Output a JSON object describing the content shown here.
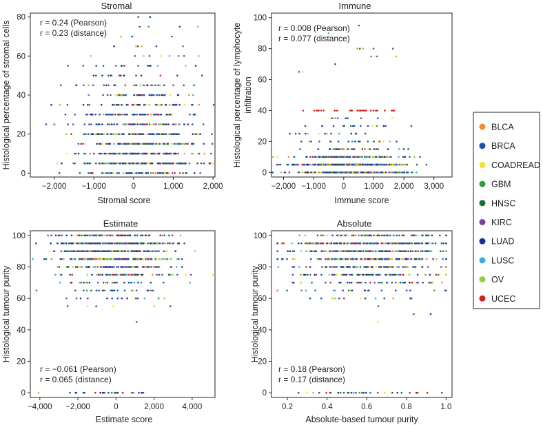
{
  "colors": {
    "BLCA": "#f28c28",
    "BRCA": "#1f4fa8",
    "COADREAD": "#f2e22a",
    "GBM": "#2e9e3f",
    "HNSC": "#1a6b3a",
    "KIRC": "#7a3fa0",
    "LUAD": "#1c2f8a",
    "LUSC": "#3fa9e0",
    "OV": "#9ccc3a",
    "UCEC": "#d42020"
  },
  "legend": {
    "entries": [
      "BLCA",
      "BRCA",
      "COADREAD",
      "GBM",
      "HNSC",
      "KIRC",
      "LUAD",
      "LUSC",
      "OV",
      "UCEC"
    ]
  },
  "chart_data": [
    {
      "type": "scatter",
      "title": "Stromal",
      "xlabel": "Stromal score",
      "ylabel": "Histological percentage of stromal cells",
      "xlim": [
        -2600,
        2050
      ],
      "ylim": [
        -2,
        82
      ],
      "xticks": [
        -2000,
        -1000,
        0,
        1000,
        2000
      ],
      "xtick_labels": [
        "−2,000",
        "−1,000",
        "0",
        "1,000",
        "2,000"
      ],
      "yticks": [
        0,
        20,
        40,
        60,
        80
      ],
      "ytick_labels": [
        "0",
        "20",
        "40",
        "60",
        "80"
      ],
      "annotations": [
        "r = 0.24 (Pearson)",
        "r = 0.23 (distance)"
      ],
      "annotation_position": "top-left",
      "series_note": "Point cloud of ~3,000 tumour samples colored by cancer type; y concentrated at multiples of 5 between 0 and 80",
      "x_center": 200,
      "x_spread": 800,
      "y_pattern": "stromal"
    },
    {
      "type": "scatter",
      "title": "Immune",
      "xlabel": "Immune score",
      "ylabel": "Histological percentage of lymphocyte infiltration",
      "xlim": [
        -2400,
        3600
      ],
      "ylim": [
        -3,
        103
      ],
      "xticks": [
        -2000,
        -1000,
        0,
        1000,
        2000,
        3000
      ],
      "xtick_labels": [
        "−2,000",
        "−1,000",
        "0",
        "1,000",
        "2,000",
        "3,000"
      ],
      "yticks": [
        0,
        20,
        40,
        60,
        80,
        100
      ],
      "ytick_labels": [
        "0",
        "20",
        "40",
        "60",
        "80",
        "100"
      ],
      "annotations": [
        "r = 0.008 (Pearson)",
        "r = 0.077 (distance)"
      ],
      "annotation_position": "top-left",
      "series_note": "Most samples near 0–10% lymphocyte infiltration; a band at 40% mostly UCEC",
      "x_center": 200,
      "x_spread": 900,
      "y_pattern": "immune"
    },
    {
      "type": "scatter",
      "title": "Estimate",
      "xlabel": "Estimate score",
      "ylabel": "Histological tumour purity",
      "xlim": [
        -4500,
        5200
      ],
      "ylim": [
        -3,
        103
      ],
      "xticks": [
        -4000,
        -2000,
        0,
        2000,
        4000
      ],
      "xtick_labels": [
        "−4,000",
        "−2,000",
        "0",
        "2,000",
        "4,000"
      ],
      "yticks": [
        0,
        20,
        40,
        60,
        80,
        100
      ],
      "ytick_labels": [
        "0",
        "20",
        "40",
        "60",
        "80",
        "100"
      ],
      "annotations": [
        "r = −0.061 (Pearson)",
        "r = 0.065 (distance)"
      ],
      "annotation_position": "bottom-left",
      "series_note": "Tumour purity mostly 60–100%",
      "x_center": 0,
      "x_spread": 1500,
      "y_pattern": "purity"
    },
    {
      "type": "scatter",
      "title": "Absolute",
      "xlabel": "Absolute-based tumour purity",
      "ylabel": "Histological tumour purity",
      "xlim": [
        0.12,
        1.03
      ],
      "ylim": [
        -3,
        103
      ],
      "xticks": [
        0.2,
        0.4,
        0.6,
        0.8,
        1.0
      ],
      "xtick_labels": [
        "0.2",
        "0.4",
        "0.6",
        "0.8",
        "1.0"
      ],
      "yticks": [
        0,
        20,
        40,
        60,
        80,
        100
      ],
      "ytick_labels": [
        "0",
        "20",
        "40",
        "60",
        "80",
        "100"
      ],
      "annotations": [
        "r = 0.18 (Pearson)",
        "r = 0.17 (distance)"
      ],
      "annotation_position": "bottom-left",
      "series_note": "Tumour purity mostly 60–100%, denser toward high absolute purity",
      "x_center": 0.62,
      "x_spread": 0.2,
      "y_pattern": "purity"
    }
  ]
}
